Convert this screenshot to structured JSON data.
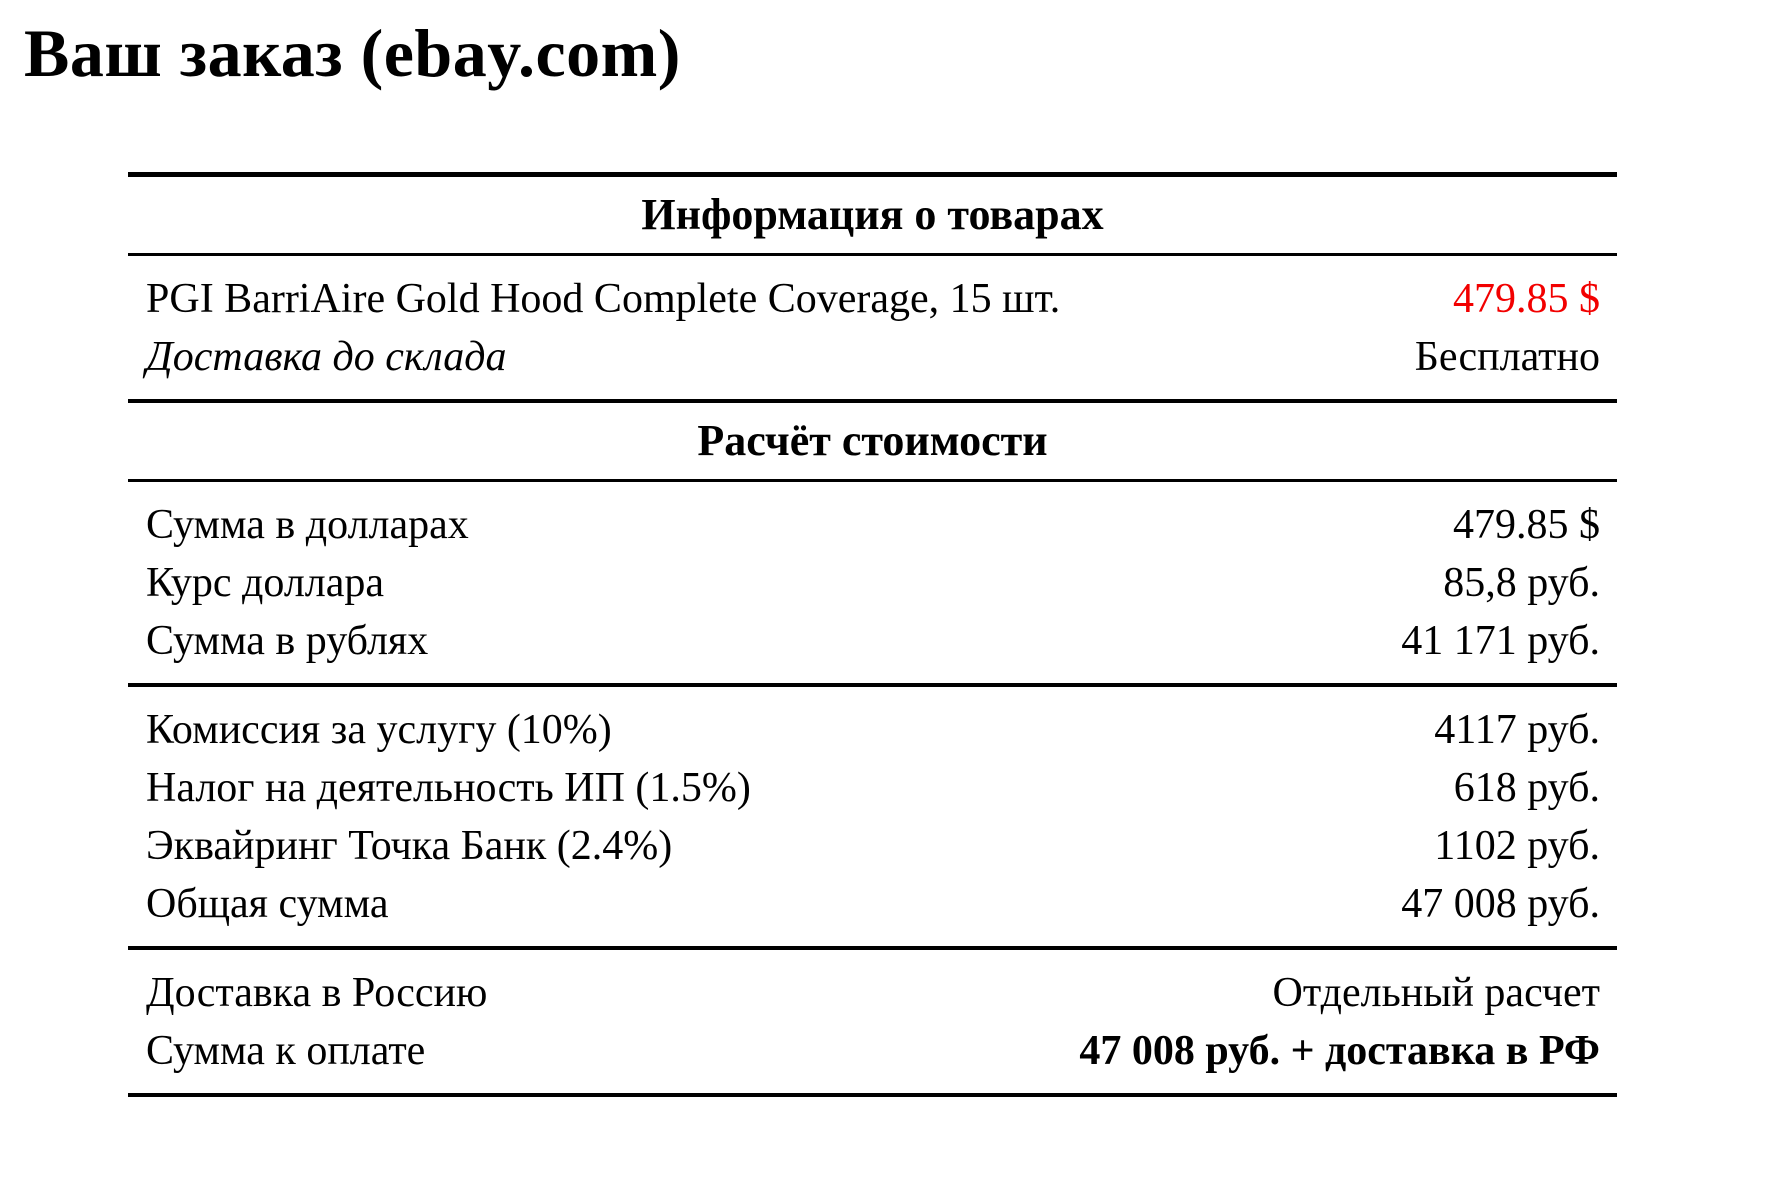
{
  "page": {
    "title": "Ваш заказ (ebay.com)"
  },
  "colors": {
    "accent_red": "#f20000",
    "text": "#000000",
    "rule": "#000000",
    "background": "#ffffff"
  },
  "table": {
    "sections": [
      {
        "header": "Информация о товарах",
        "groups": [
          {
            "rows": [
              {
                "label": "PGI BarriAire Gold Hood Complete Coverage, 15 шт.",
                "value": "479.85 $",
                "value_red": true
              },
              {
                "label": "Доставка до склада",
                "value": "Бесплатно",
                "label_italic": true
              }
            ]
          }
        ]
      },
      {
        "header": "Расчёт стоимости",
        "groups": [
          {
            "rows": [
              {
                "label": "Сумма в долларах",
                "value": "479.85 $"
              },
              {
                "label": "Курс доллара",
                "value": "85,8 руб."
              },
              {
                "label": "Сумма в рублях",
                "value": "41 171 руб."
              }
            ]
          },
          {
            "rows": [
              {
                "label": "Комиссия за услугу (10%)",
                "value": "4117 руб."
              },
              {
                "label": "Налог на деятельность ИП (1.5%)",
                "value": "618 руб."
              },
              {
                "label": "Эквайринг Точка Банк (2.4%)",
                "value": "1102 руб."
              },
              {
                "label": "Общая сумма",
                "value": "47 008 руб."
              }
            ]
          },
          {
            "rows": [
              {
                "label": "Доставка в Россию",
                "value": "Отдельный расчет"
              },
              {
                "label": "Сумма к оплате",
                "value": "47 008 руб. + доставка в РФ",
                "value_bold": true
              }
            ]
          }
        ]
      }
    ]
  }
}
